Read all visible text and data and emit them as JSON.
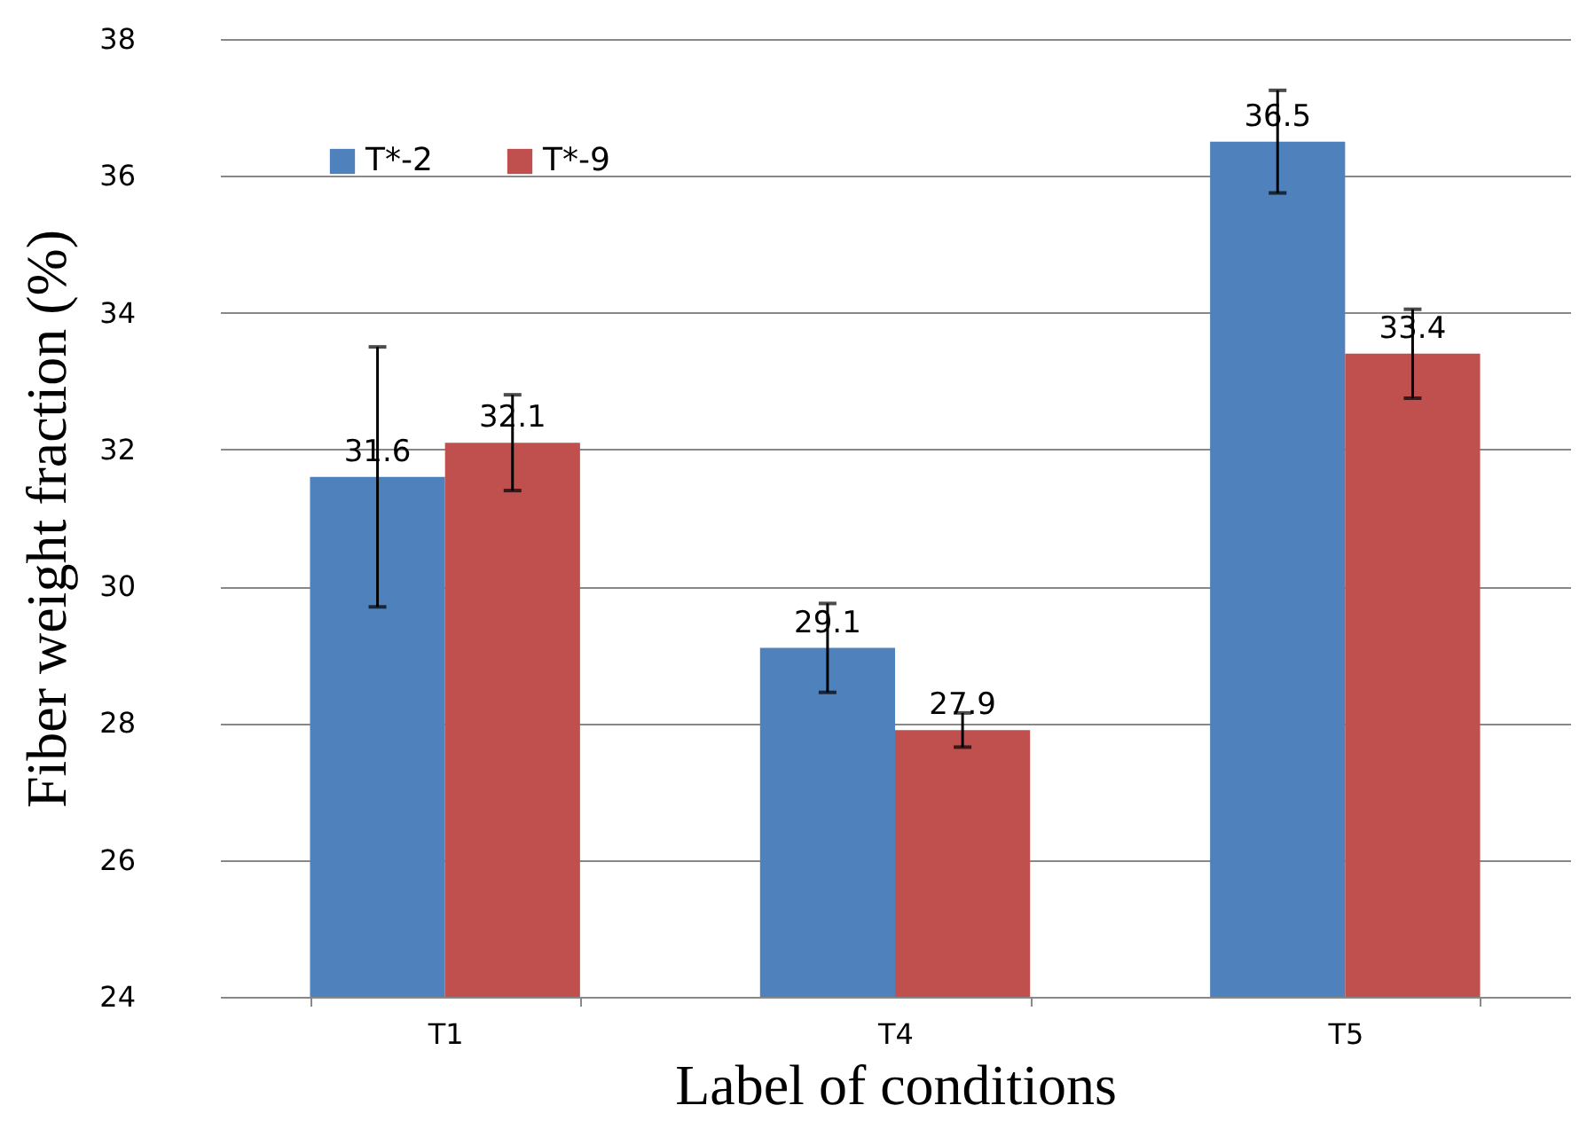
{
  "chart_data": {
    "type": "bar",
    "xlabel": "Label of conditions",
    "ylabel": "Fiber weight fraction (%)",
    "categories": [
      "T1",
      "T4",
      "T5"
    ],
    "series": [
      {
        "name": "T*-2",
        "color": "#4f81bd",
        "values": [
          31.6,
          29.1,
          36.5
        ],
        "errors": [
          1.9,
          0.65,
          0.75
        ]
      },
      {
        "name": "T*-9",
        "color": "#c0504d",
        "values": [
          32.1,
          27.9,
          33.4
        ],
        "errors": [
          0.7,
          0.25,
          0.65
        ]
      }
    ],
    "ylim": [
      24,
      38
    ],
    "yticks": [
      24,
      26,
      28,
      30,
      32,
      34,
      36,
      38
    ],
    "grid": "y",
    "legend": "top left",
    "data_labels": true
  }
}
